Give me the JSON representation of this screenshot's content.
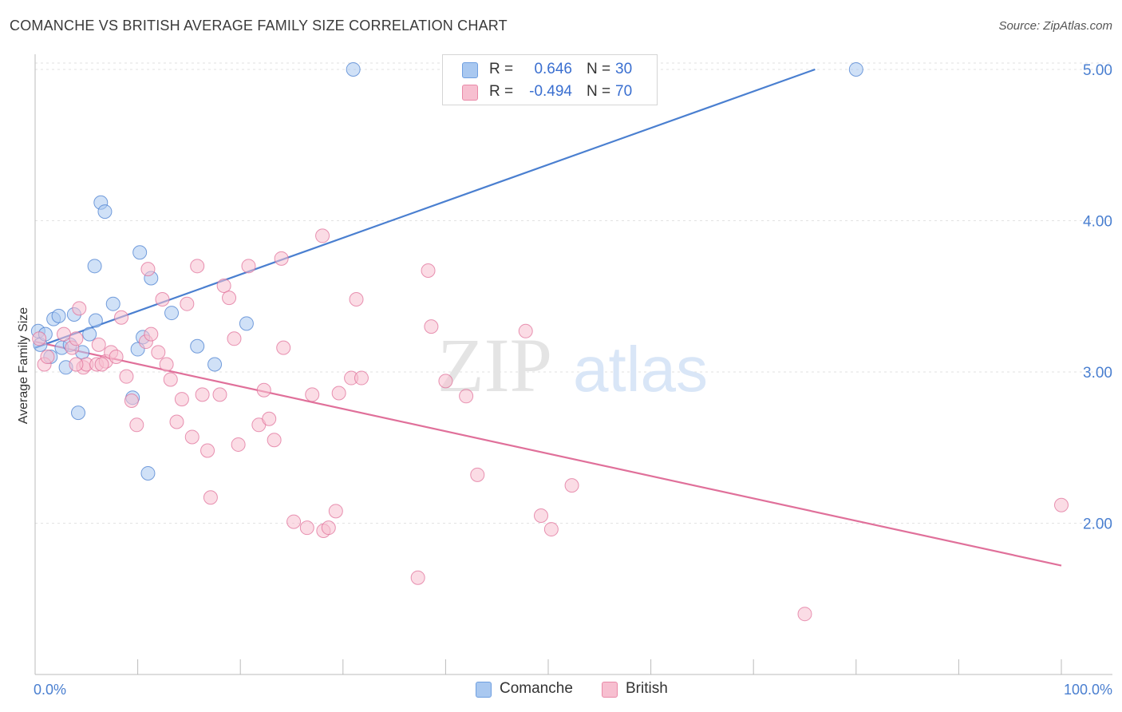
{
  "title": "COMANCHE VS BRITISH AVERAGE FAMILY SIZE CORRELATION CHART",
  "source": "Source: ZipAtlas.com",
  "watermark": {
    "zip": "ZIP",
    "atlas": "atlas"
  },
  "legend": {
    "rows": [
      {
        "r_label": "R =",
        "r_value": "0.646",
        "n_label": "N =",
        "n_value": "30",
        "color": "#a9c8f0",
        "border": "#6f9fe0"
      },
      {
        "r_label": "R =",
        "r_value": "-0.494",
        "n_label": "N =",
        "n_value": "70",
        "color": "#f7bfd0",
        "border": "#e98aa8"
      }
    ]
  },
  "bottom_legend": [
    {
      "label": "Comanche",
      "color": "#a9c8f0",
      "border": "#6f9fe0"
    },
    {
      "label": "British",
      "color": "#f7bfd0",
      "border": "#e98aa8"
    }
  ],
  "chart_data": {
    "type": "scatter",
    "title": "COMANCHE VS BRITISH AVERAGE FAMILY SIZE CORRELATION CHART",
    "xlabel": "",
    "ylabel": "Average Family Size",
    "xlim": [
      0,
      100
    ],
    "ylim": [
      1.0,
      5.1
    ],
    "x_tick_labels": [
      {
        "value": 0,
        "label": "0.0%"
      },
      {
        "value": 100,
        "label": "100.0%"
      }
    ],
    "y_ticks": [
      {
        "value": 2.0,
        "label": "2.00"
      },
      {
        "value": 3.0,
        "label": "3.00"
      },
      {
        "value": 4.0,
        "label": "4.00"
      },
      {
        "value": 5.0,
        "label": "5.00"
      }
    ],
    "grid": true,
    "series": [
      {
        "name": "Comanche",
        "color": "#4a7fd0",
        "fill": "#a9c8f0",
        "points": [
          [
            0.3,
            3.27
          ],
          [
            0.5,
            3.18
          ],
          [
            1.0,
            3.25
          ],
          [
            1.5,
            3.1
          ],
          [
            1.8,
            3.35
          ],
          [
            2.3,
            3.37
          ],
          [
            2.6,
            3.16
          ],
          [
            3.0,
            3.03
          ],
          [
            3.4,
            3.18
          ],
          [
            3.8,
            3.38
          ],
          [
            4.2,
            2.73
          ],
          [
            4.6,
            3.13
          ],
          [
            5.3,
            3.25
          ],
          [
            5.8,
            3.7
          ],
          [
            5.9,
            3.34
          ],
          [
            6.4,
            4.12
          ],
          [
            6.8,
            4.06
          ],
          [
            7.6,
            3.45
          ],
          [
            9.5,
            2.83
          ],
          [
            10.0,
            3.15
          ],
          [
            10.2,
            3.79
          ],
          [
            10.5,
            3.23
          ],
          [
            11.0,
            2.33
          ],
          [
            11.3,
            3.62
          ],
          [
            13.3,
            3.39
          ],
          [
            15.8,
            3.17
          ],
          [
            17.5,
            3.05
          ],
          [
            20.6,
            3.32
          ],
          [
            31.0,
            5.0
          ],
          [
            80.0,
            5.0
          ]
        ],
        "trend": {
          "x": [
            0,
            76
          ],
          "y": [
            3.16,
            5.0
          ]
        }
      },
      {
        "name": "British",
        "color": "#e0709a",
        "fill": "#f7bfd0",
        "points": [
          [
            0.4,
            3.22
          ],
          [
            0.9,
            3.05
          ],
          [
            1.2,
            3.1
          ],
          [
            2.8,
            3.25
          ],
          [
            3.6,
            3.16
          ],
          [
            4.0,
            3.22
          ],
          [
            4.3,
            3.42
          ],
          [
            4.7,
            3.03
          ],
          [
            5.0,
            3.05
          ],
          [
            6.0,
            3.05
          ],
          [
            6.2,
            3.18
          ],
          [
            6.9,
            3.07
          ],
          [
            7.4,
            3.13
          ],
          [
            7.9,
            3.1
          ],
          [
            8.4,
            3.36
          ],
          [
            8.9,
            2.97
          ],
          [
            9.4,
            2.81
          ],
          [
            9.9,
            2.65
          ],
          [
            10.8,
            3.2
          ],
          [
            11.0,
            3.68
          ],
          [
            11.3,
            3.25
          ],
          [
            12.0,
            3.13
          ],
          [
            12.4,
            3.48
          ],
          [
            12.8,
            3.05
          ],
          [
            13.2,
            2.95
          ],
          [
            13.8,
            2.67
          ],
          [
            14.3,
            2.82
          ],
          [
            14.8,
            3.45
          ],
          [
            15.3,
            2.57
          ],
          [
            15.8,
            3.7
          ],
          [
            16.3,
            2.85
          ],
          [
            16.8,
            2.48
          ],
          [
            17.1,
            2.17
          ],
          [
            18.0,
            2.85
          ],
          [
            18.4,
            3.57
          ],
          [
            18.9,
            3.49
          ],
          [
            19.4,
            3.22
          ],
          [
            19.8,
            2.52
          ],
          [
            20.8,
            3.7
          ],
          [
            21.8,
            2.65
          ],
          [
            22.3,
            2.88
          ],
          [
            22.8,
            2.69
          ],
          [
            23.3,
            2.55
          ],
          [
            24.0,
            3.75
          ],
          [
            24.2,
            3.16
          ],
          [
            25.2,
            2.01
          ],
          [
            26.5,
            1.97
          ],
          [
            27.0,
            2.85
          ],
          [
            28.0,
            3.9
          ],
          [
            28.1,
            1.95
          ],
          [
            28.6,
            1.97
          ],
          [
            29.3,
            2.08
          ],
          [
            29.6,
            2.86
          ],
          [
            30.8,
            2.96
          ],
          [
            31.3,
            3.48
          ],
          [
            31.8,
            2.96
          ],
          [
            37.3,
            1.64
          ],
          [
            38.3,
            3.67
          ],
          [
            38.6,
            3.3
          ],
          [
            40.0,
            2.94
          ],
          [
            42.0,
            2.84
          ],
          [
            43.1,
            2.32
          ],
          [
            47.8,
            3.27
          ],
          [
            49.3,
            2.05
          ],
          [
            50.3,
            1.96
          ],
          [
            52.3,
            2.25
          ],
          [
            75.0,
            1.4
          ],
          [
            100.0,
            2.12
          ],
          [
            4.0,
            3.05
          ],
          [
            6.5,
            3.05
          ]
        ],
        "trend": {
          "x": [
            0,
            100
          ],
          "y": [
            3.2,
            1.72
          ]
        }
      }
    ]
  }
}
